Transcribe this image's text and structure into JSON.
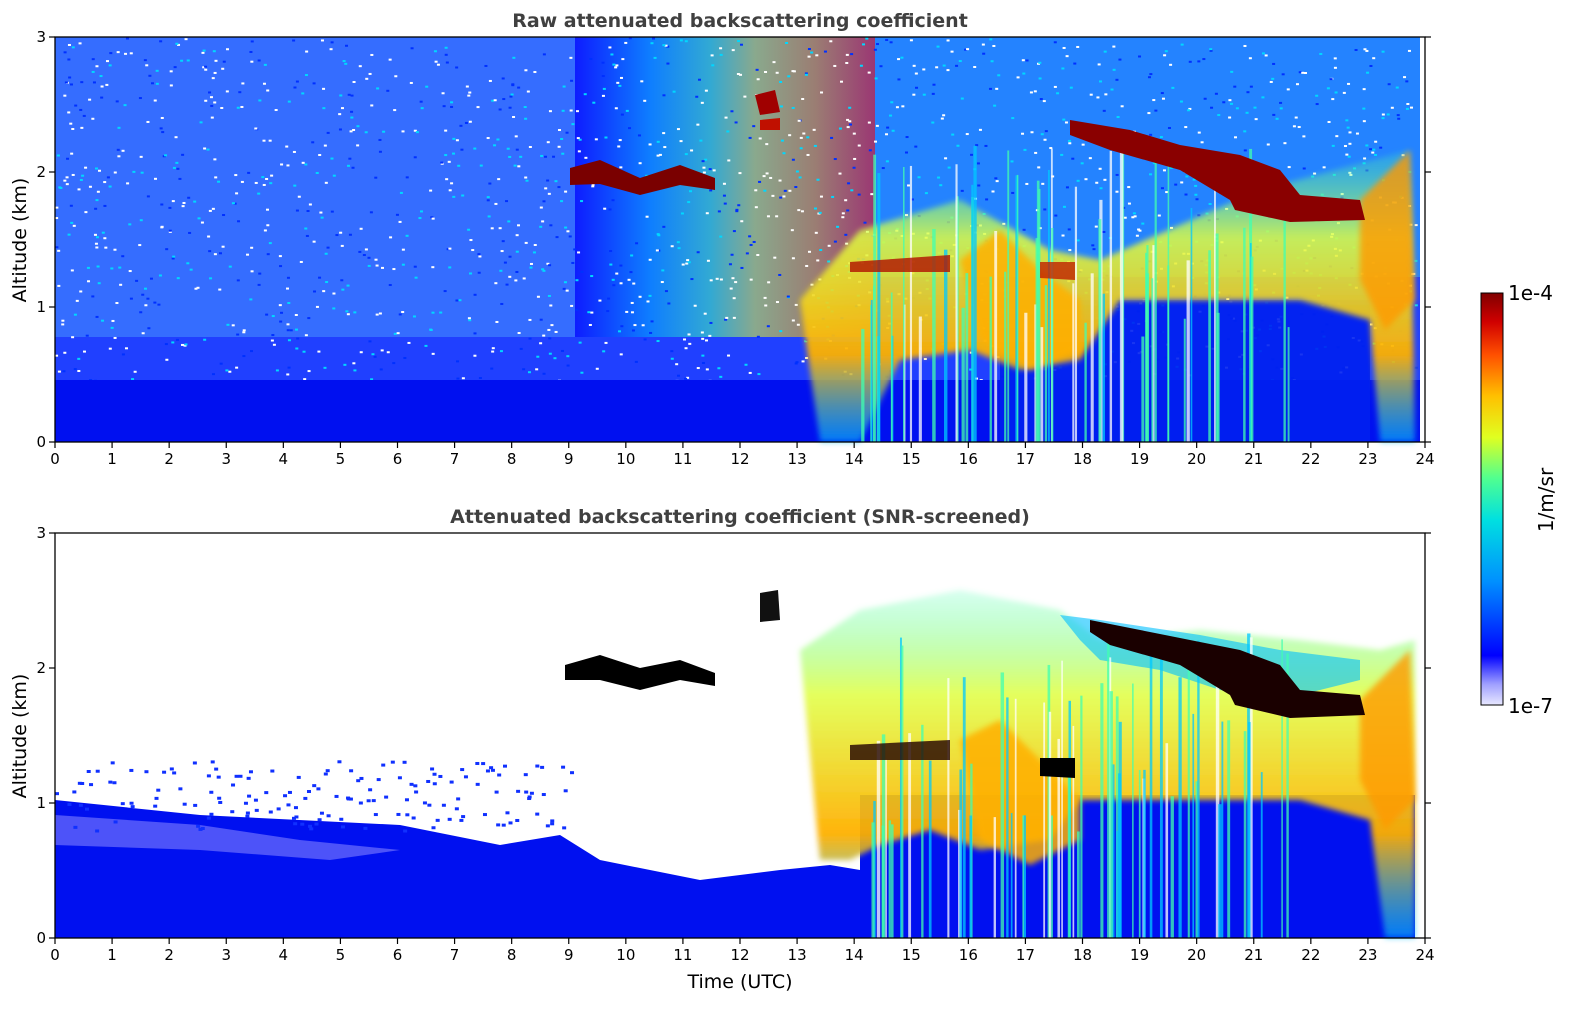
{
  "chart_data": [
    {
      "type": "heatmap",
      "title": "Raw attenuated backscattering coefficient",
      "xlabel": "",
      "ylabel": "Altitude (km)",
      "xlim": [
        0,
        24
      ],
      "ylim": [
        0,
        3
      ],
      "xticks": [
        0,
        1,
        2,
        3,
        4,
        5,
        6,
        7,
        8,
        9,
        10,
        11,
        12,
        13,
        14,
        15,
        16,
        17,
        18,
        19,
        20,
        21,
        22,
        23,
        24
      ],
      "yticks": [
        0,
        1,
        2,
        3
      ],
      "features": [
        {
          "feature": "boundary-layer",
          "x_range": [
            0,
            23.8
          ],
          "alt_range": [
            0,
            0.45
          ]
        },
        {
          "feature": "cloud-layer",
          "x_range": [
            9.0,
            11.3
          ],
          "alt_km": 1.93
        },
        {
          "feature": "cloud-layer",
          "x_range": [
            12.3,
            12.7
          ],
          "alt_km": 2.5
        },
        {
          "feature": "cloud-layer",
          "x_range": [
            17.8,
            23.0
          ],
          "alt_km": 1.9
        },
        {
          "feature": "aerosol-plume",
          "x_range": [
            13.0,
            23.8
          ],
          "alt_range": [
            0.7,
            1.9
          ]
        }
      ]
    },
    {
      "type": "heatmap",
      "title": "Attenuated backscattering coefficient (SNR-screened)",
      "xlabel": "Time (UTC)",
      "ylabel": "Altitude (km)",
      "xlim": [
        0,
        24
      ],
      "ylim": [
        0,
        3
      ],
      "xticks": [
        0,
        1,
        2,
        3,
        4,
        5,
        6,
        7,
        8,
        9,
        10,
        11,
        12,
        13,
        14,
        15,
        16,
        17,
        18,
        19,
        20,
        21,
        22,
        23,
        24
      ],
      "yticks": [
        0,
        1,
        2,
        3
      ],
      "features": [
        {
          "feature": "boundary-layer",
          "x_range": [
            0,
            23.8
          ],
          "alt_range": [
            0,
            0.7
          ]
        },
        {
          "feature": "cloud-layer",
          "x_range": [
            9.0,
            11.3
          ],
          "alt_km": 1.95
        },
        {
          "feature": "cloud-layer",
          "x_range": [
            12.3,
            12.7
          ],
          "alt_km": 2.45
        },
        {
          "feature": "cloud-layer",
          "x_range": [
            17.8,
            23.0
          ],
          "alt_km": 1.9
        },
        {
          "feature": "aerosol-plume",
          "x_range": [
            13.0,
            23.8
          ],
          "alt_range": [
            0.6,
            1.9
          ]
        }
      ]
    }
  ],
  "colorbar": {
    "min_label": "1e-7",
    "max_label": "1e-4",
    "unit_label": "1/m/sr",
    "colormap": "jet",
    "colors": [
      "#e8e8ff",
      "#0000ff",
      "#00a0ff",
      "#00e0d0",
      "#60ff80",
      "#e0ff20",
      "#ffd000",
      "#ff6000",
      "#e00000",
      "#800000"
    ]
  }
}
